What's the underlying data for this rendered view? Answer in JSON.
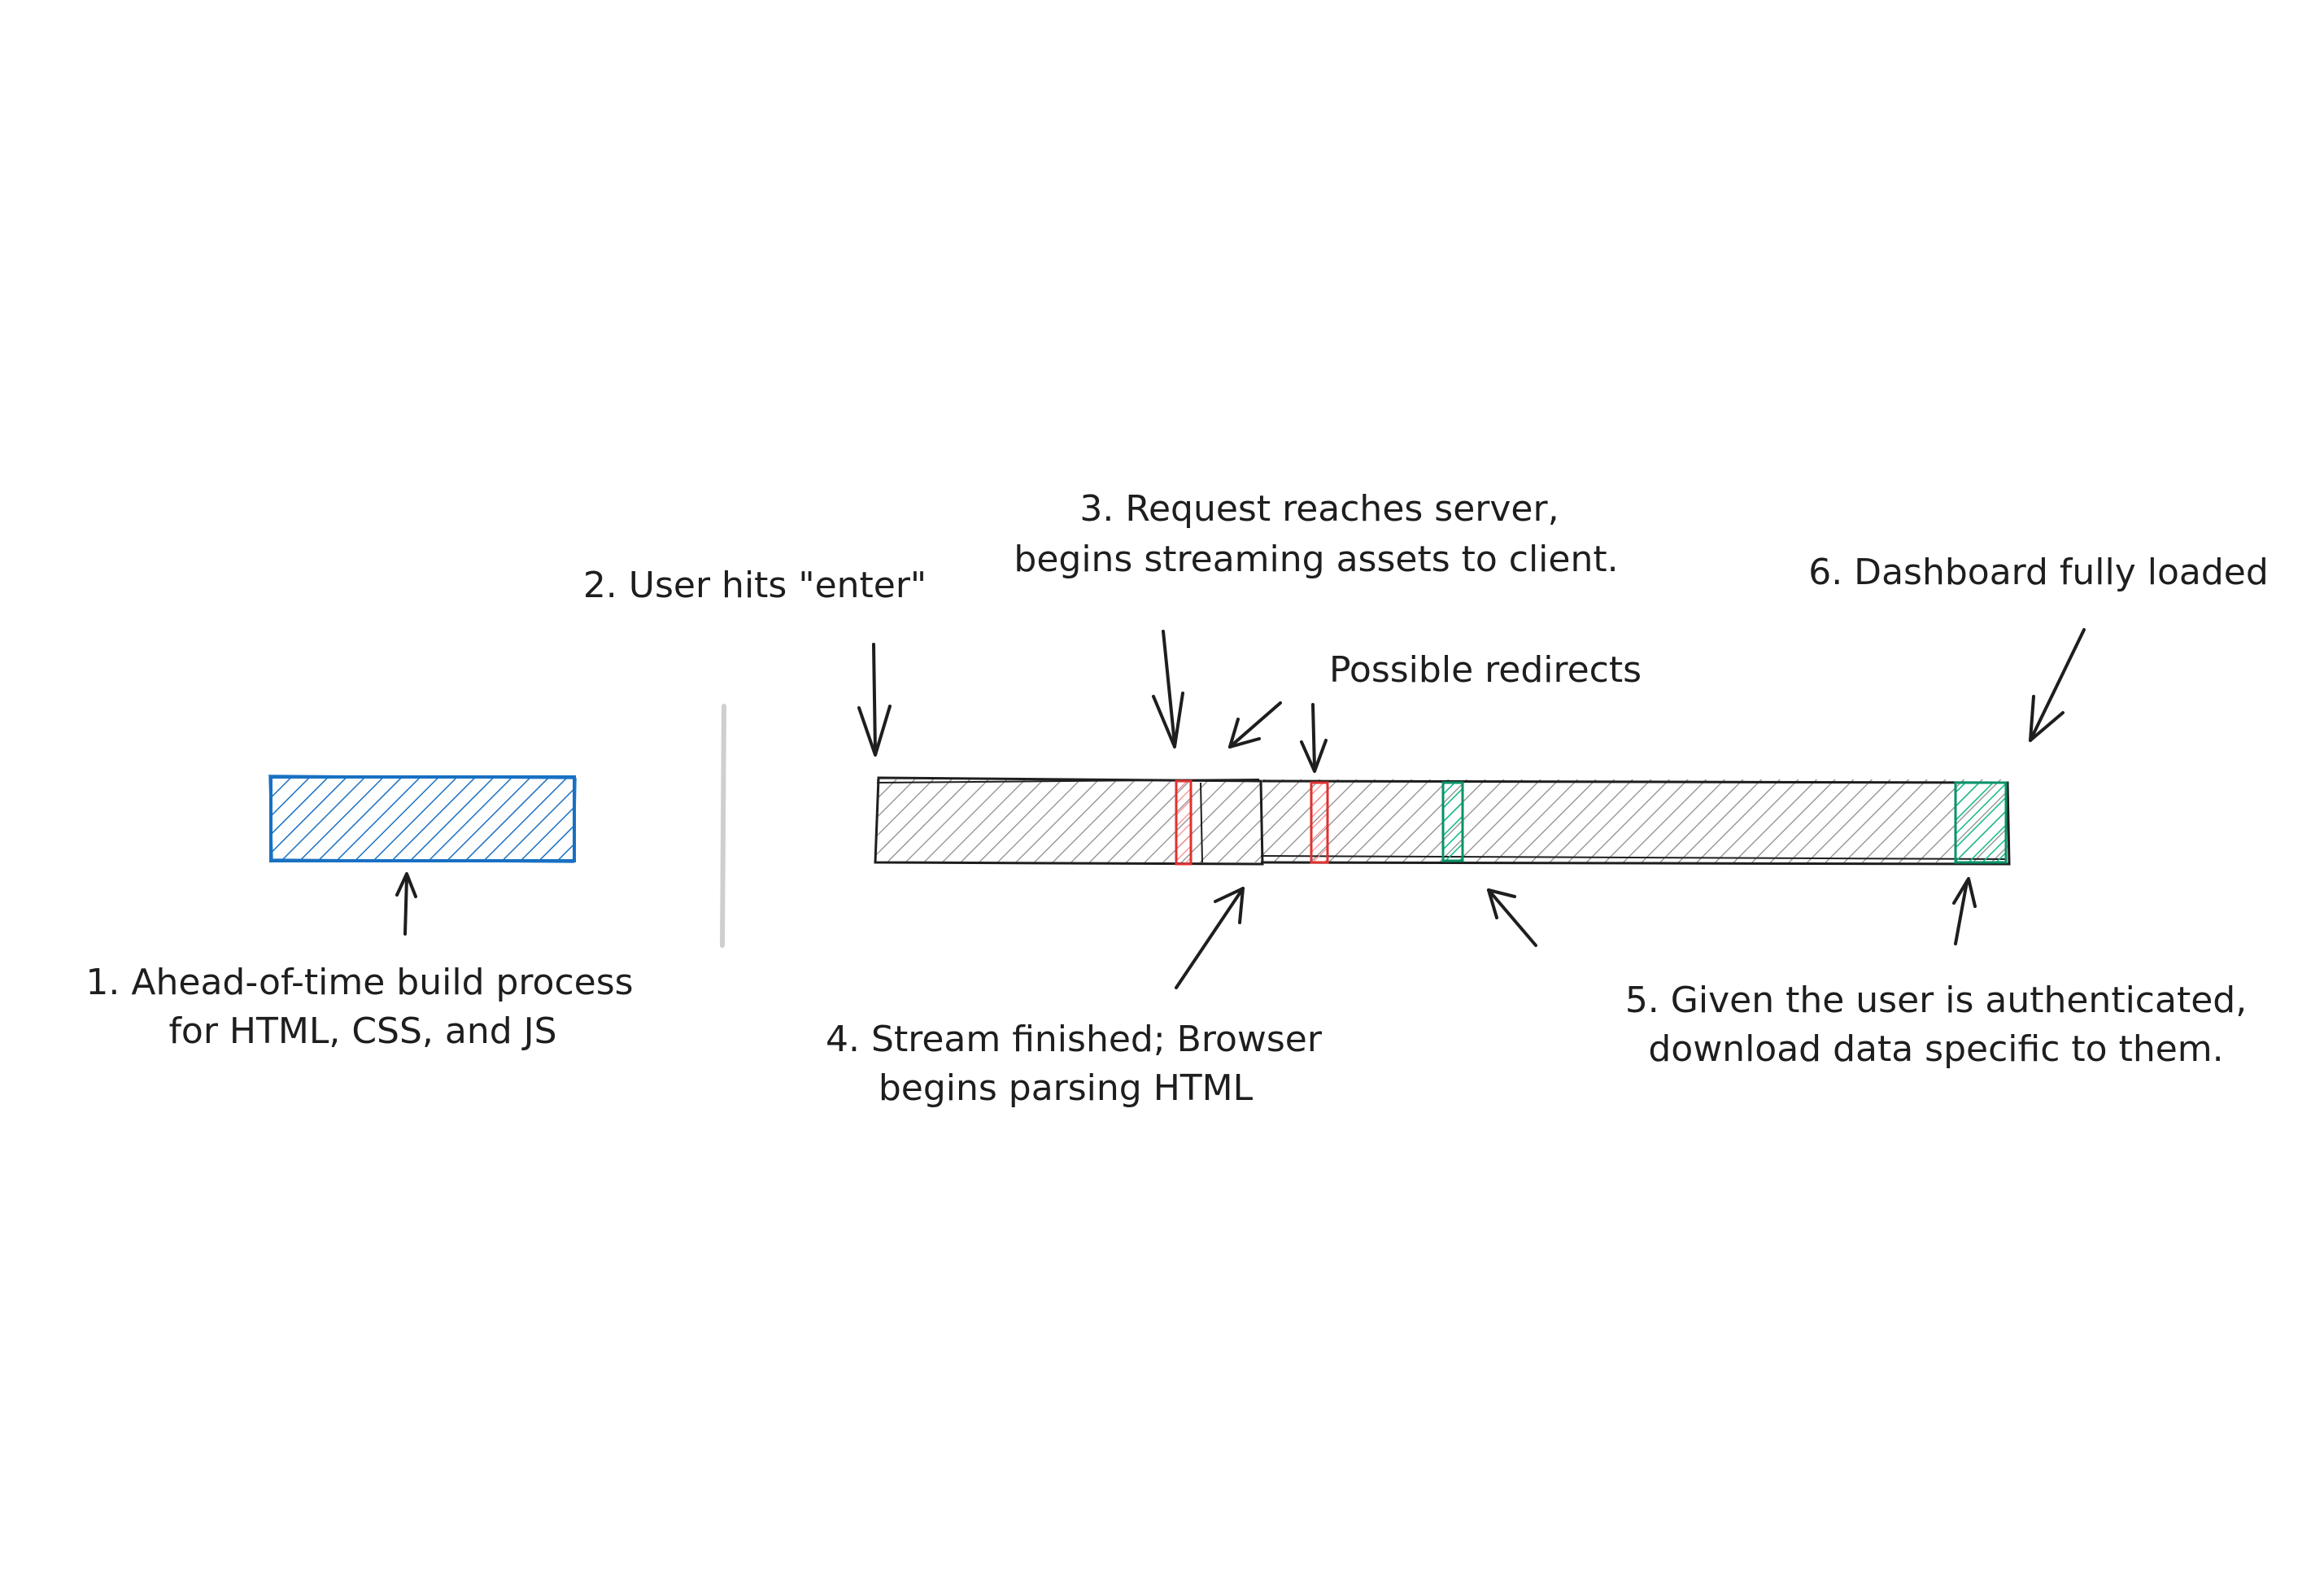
{
  "labels": {
    "step1_line1": "1. Ahead-of-time build process",
    "step1_line2": "for HTML, CSS, and JS",
    "step2": "2. User hits \"enter\"",
    "step3_line1": "3. Request reaches server,",
    "step3_line2": "begins streaming assets to client.",
    "redirects": "Possible redirects",
    "step4_line1": "4. Stream finished; Browser",
    "step4_line2": "begins parsing HTML",
    "step5_line1": "5. Given the user is authenticated,",
    "step5_line2": "download data specific to them.",
    "step6": "6. Dashboard fully loaded"
  },
  "colors": {
    "build_bar": "#1971c2",
    "timeline_bar": "#1e1e1e",
    "redirect_marker": "#e03131",
    "data_marker": "#099268",
    "divider": "#cfcfcf",
    "text": "#1e1e1e"
  }
}
